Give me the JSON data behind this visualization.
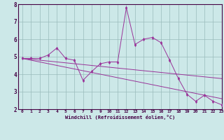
{
  "xlabel": "Windchill (Refroidissement éolien,°C)",
  "bg_color": "#cce8e8",
  "line_color": "#993399",
  "grid_color": "#99bbbb",
  "x_data": [
    0,
    1,
    2,
    3,
    4,
    5,
    6,
    7,
    8,
    9,
    10,
    11,
    12,
    13,
    14,
    15,
    16,
    17,
    18,
    19,
    20,
    21,
    22,
    23
  ],
  "y_zigzag": [
    4.9,
    4.9,
    4.9,
    5.1,
    5.5,
    4.9,
    4.8,
    3.65,
    4.15,
    4.6,
    4.7,
    4.7,
    7.8,
    5.7,
    6.0,
    6.1,
    5.8,
    4.8,
    3.75,
    2.85,
    2.45,
    2.8,
    2.45,
    2.25
  ],
  "y_trend1": [
    4.9,
    4.85,
    4.8,
    4.75,
    4.7,
    4.65,
    4.6,
    4.55,
    4.5,
    4.45,
    4.4,
    4.35,
    4.3,
    4.25,
    4.2,
    4.15,
    4.1,
    4.05,
    4.0,
    3.95,
    3.9,
    3.85,
    3.8,
    3.75
  ],
  "y_trend2": [
    4.9,
    4.8,
    4.7,
    4.6,
    4.5,
    4.4,
    4.3,
    4.2,
    4.1,
    4.0,
    3.9,
    3.8,
    3.7,
    3.6,
    3.5,
    3.4,
    3.3,
    3.2,
    3.1,
    3.0,
    2.9,
    2.8,
    2.7,
    2.6
  ],
  "ylim": [
    2,
    8
  ],
  "xlim": [
    -0.5,
    23
  ],
  "yticks": [
    2,
    3,
    4,
    5,
    6,
    7,
    8
  ],
  "xticks": [
    0,
    1,
    2,
    3,
    4,
    5,
    6,
    7,
    8,
    9,
    10,
    11,
    12,
    13,
    14,
    15,
    16,
    17,
    18,
    19,
    20,
    21,
    22,
    23
  ]
}
